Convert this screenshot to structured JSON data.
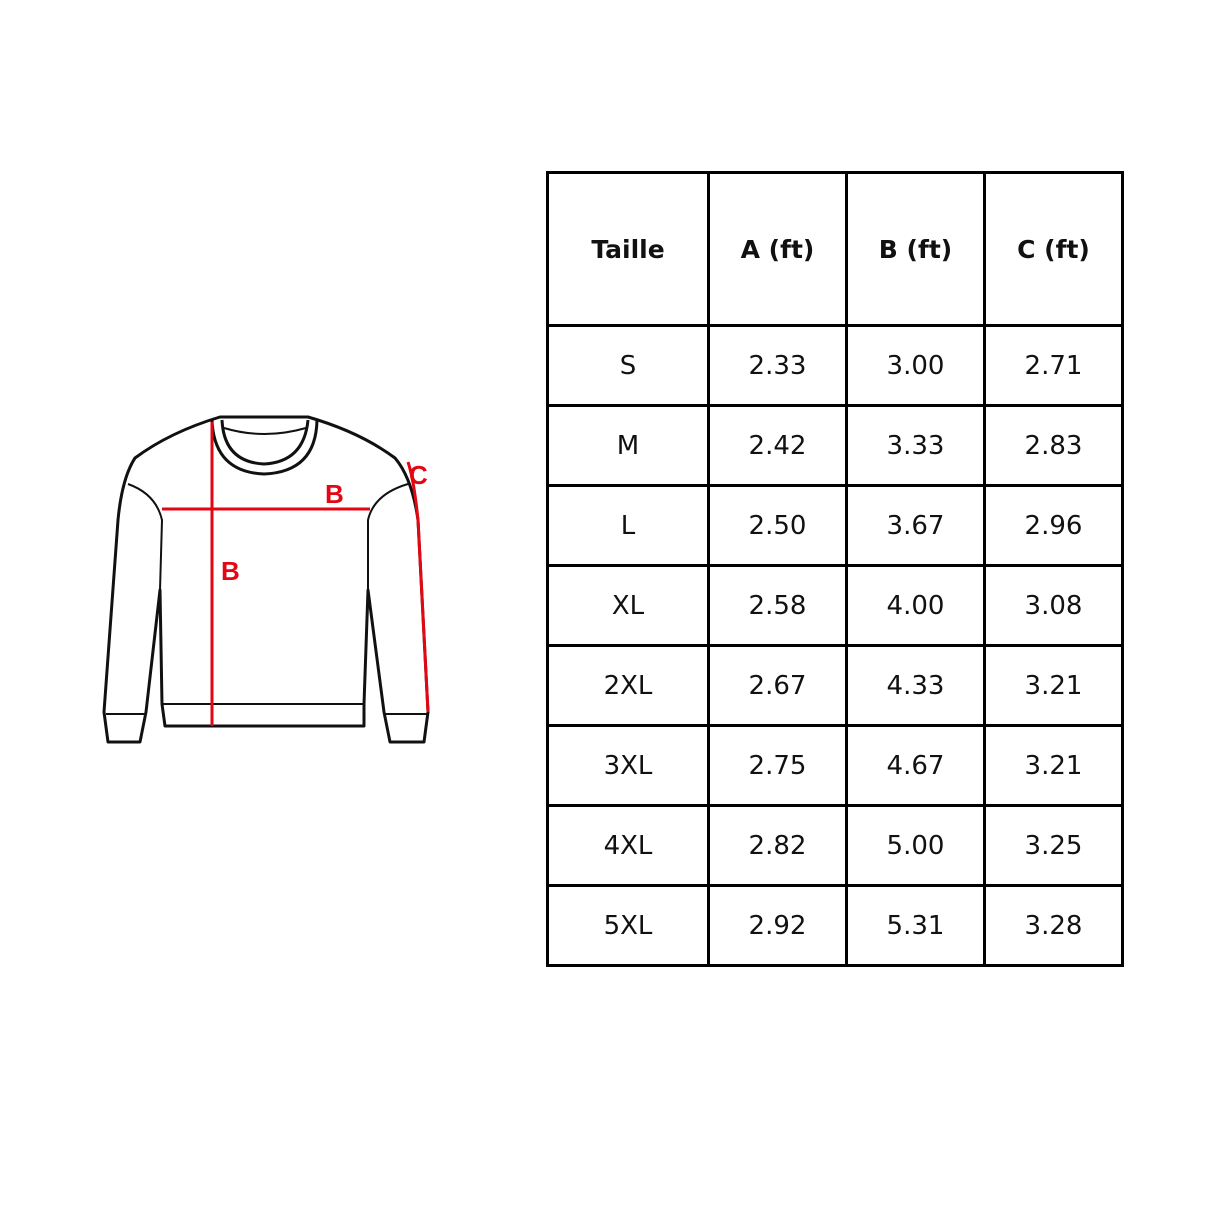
{
  "diagram": {
    "labels": {
      "length": "B",
      "width": "B",
      "sleeve": "C"
    },
    "accent_color": "#e30613",
    "garment": "sweatshirt"
  },
  "table": {
    "headers": [
      "Taille",
      "A (ft)",
      "B (ft)",
      "C (ft)"
    ],
    "rows": [
      [
        "S",
        "2.33",
        "3.00",
        "2.71"
      ],
      [
        "M",
        "2.42",
        "3.33",
        "2.83"
      ],
      [
        "L",
        "2.50",
        "3.67",
        "2.96"
      ],
      [
        "XL",
        "2.58",
        "4.00",
        "3.08"
      ],
      [
        "2XL",
        "2.67",
        "4.33",
        "3.21"
      ],
      [
        "3XL",
        "2.75",
        "4.67",
        "3.21"
      ],
      [
        "4XL",
        "2.82",
        "5.00",
        "3.25"
      ],
      [
        "5XL",
        "2.92",
        "5.31",
        "3.28"
      ]
    ]
  }
}
